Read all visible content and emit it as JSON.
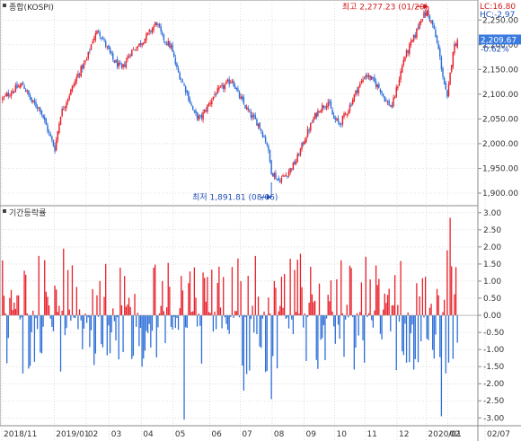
{
  "colors": {
    "up": "#e8202a",
    "down": "#2e6fd8",
    "grid": "#c8c8c8",
    "frame": "#8a8a8a",
    "label": "#333333",
    "current_bg": "#3a7be0",
    "high_label": "#d31a1a",
    "low_label": "#1f4fb5"
  },
  "panels": {
    "price_title": "종합(KOSPI)",
    "change_title": "기간등락률"
  },
  "indicators": {
    "lc": "LC:16.80",
    "hc": "HC:-2.97"
  },
  "current": {
    "value": "2,209.67",
    "change": "-0.62%"
  },
  "annotations": {
    "high_text": "최고 2,277.23 (01/20)",
    "low_text": "최저 1,891.81 (08/06)"
  },
  "x_axis": {
    "labels": [
      "2018/11",
      "2019/01",
      "02",
      "03",
      "04",
      "05",
      "06",
      "07",
      "08",
      "09",
      "10",
      "11",
      "12",
      "2020/01",
      "02",
      "02/07"
    ]
  },
  "chart_data": [
    {
      "type": "candlestick",
      "title": "종합(KOSPI)",
      "ylim": [
        1880,
        2285
      ],
      "yticks": [
        1900,
        1950,
        2000,
        2050,
        2100,
        2150,
        2200,
        2250
      ],
      "ytick_labels": [
        "1,900.00",
        "1,950.00",
        "2,000.00",
        "2,050.00",
        "2,100.00",
        "2,150.00",
        "2,200.00",
        "2,250.00"
      ],
      "trend_anchors": [
        [
          0,
          2090
        ],
        [
          8,
          2110
        ],
        [
          14,
          2120
        ],
        [
          20,
          2085
        ],
        [
          26,
          2070
        ],
        [
          32,
          2020
        ],
        [
          36,
          1990
        ],
        [
          40,
          2060
        ],
        [
          46,
          2100
        ],
        [
          52,
          2140
        ],
        [
          58,
          2170
        ],
        [
          62,
          2210
        ],
        [
          66,
          2230
        ],
        [
          70,
          2205
        ],
        [
          76,
          2170
        ],
        [
          82,
          2150
        ],
        [
          88,
          2185
        ],
        [
          94,
          2200
        ],
        [
          100,
          2220
        ],
        [
          106,
          2245
        ],
        [
          110,
          2215
        ],
        [
          116,
          2195
        ],
        [
          120,
          2150
        ],
        [
          126,
          2110
        ],
        [
          132,
          2060
        ],
        [
          136,
          2050
        ],
        [
          140,
          2070
        ],
        [
          146,
          2100
        ],
        [
          152,
          2115
        ],
        [
          158,
          2130
        ],
        [
          162,
          2100
        ],
        [
          166,
          2080
        ],
        [
          170,
          2060
        ],
        [
          176,
          2040
        ],
        [
          182,
          2000
        ],
        [
          185,
          1945
        ],
        [
          190,
          1925
        ],
        [
          196,
          1940
        ],
        [
          202,
          1965
        ],
        [
          208,
          2010
        ],
        [
          214,
          2050
        ],
        [
          218,
          2070
        ],
        [
          224,
          2085
        ],
        [
          228,
          2050
        ],
        [
          232,
          2040
        ],
        [
          238,
          2070
        ],
        [
          244,
          2110
        ],
        [
          250,
          2140
        ],
        [
          254,
          2130
        ],
        [
          260,
          2110
        ],
        [
          264,
          2085
        ],
        [
          268,
          2075
        ],
        [
          272,
          2120
        ],
        [
          276,
          2170
        ],
        [
          280,
          2195
        ],
        [
          284,
          2220
        ],
        [
          288,
          2255
        ],
        [
          292,
          2265
        ],
        [
          296,
          2240
        ],
        [
          300,
          2190
        ],
        [
          304,
          2120
        ],
        [
          306,
          2090
        ],
        [
          310,
          2190
        ],
        [
          313,
          2210
        ]
      ],
      "high": {
        "value": 2277.23,
        "date": "01/20"
      },
      "low": {
        "value": 1891.81,
        "date": "08/06"
      },
      "last": 2209.67
    },
    {
      "type": "bar",
      "title": "기간등락률",
      "ylim": [
        -3.15,
        3.1
      ],
      "yticks": [
        3,
        2.5,
        2,
        1.5,
        1,
        0.5,
        0,
        -0.5,
        -1,
        -1.5,
        -2,
        -2.5,
        -3
      ],
      "ytick_labels": [
        "3.00",
        "2.50",
        "2.00",
        "1.50",
        "1.00",
        "0.50",
        "0.00",
        "-0.50",
        "-1.00",
        "-1.50",
        "-2.00",
        "-2.50",
        "-3.00"
      ],
      "notable_values": [
        {
          "index": 125,
          "value": -3.05
        },
        {
          "index": 302,
          "value": -2.95
        },
        {
          "index": 308,
          "value": 2.85
        },
        {
          "index": 306,
          "value": 1.9
        },
        {
          "index": 42,
          "value": 1.95
        },
        {
          "index": 205,
          "value": 1.8
        },
        {
          "index": 185,
          "value": -2.45
        },
        {
          "index": 166,
          "value": -2.2
        },
        {
          "index": 305,
          "value": -1.7
        }
      ],
      "last": -0.8
    }
  ]
}
